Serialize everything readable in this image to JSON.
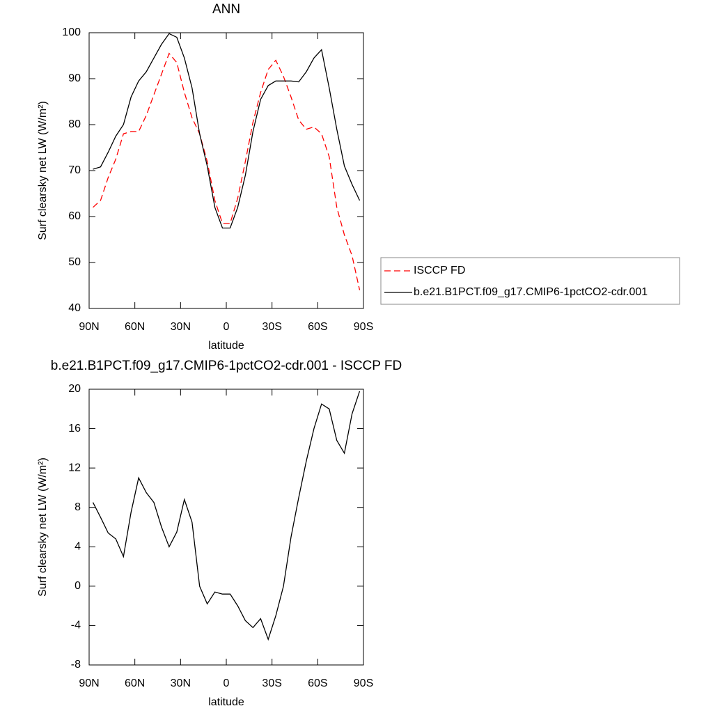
{
  "chart_data": [
    {
      "type": "line",
      "title": "ANN",
      "xlabel": "latitude",
      "ylabel": "Surf clearsky net LW (W/m²)",
      "xlim": [
        90,
        -90
      ],
      "ylim": [
        40,
        100
      ],
      "xticks": [
        {
          "value": 90,
          "label": "90N"
        },
        {
          "value": 60,
          "label": "60N"
        },
        {
          "value": 30,
          "label": "30N"
        },
        0,
        {
          "value": -30,
          "label": "30S"
        },
        {
          "value": -60,
          "label": "60S"
        },
        {
          "value": -90,
          "label": "90S"
        }
      ],
      "yticks": [
        40,
        50,
        60,
        70,
        80,
        90,
        100
      ],
      "legend": "right",
      "x": [
        87.5,
        82.5,
        77.5,
        72.5,
        67.5,
        62.5,
        57.5,
        52.5,
        47.5,
        42.5,
        37.5,
        32.5,
        27.5,
        22.5,
        17.5,
        12.5,
        7.5,
        2.5,
        -2.5,
        -7.5,
        -12.5,
        -17.5,
        -22.5,
        -27.5,
        -32.5,
        -37.5,
        -42.5,
        -47.5,
        -52.5,
        -57.5,
        -62.5,
        -67.5,
        -72.5,
        -77.5,
        -82.5,
        -87.5
      ],
      "series": [
        {
          "name": "ISCCP FD",
          "color": "#ff0000",
          "dashed": true,
          "values": [
            62,
            63.5,
            68.5,
            72.5,
            78,
            78.5,
            78.5,
            82,
            86.5,
            91,
            95.5,
            93.5,
            87,
            81.5,
            78,
            72,
            63.5,
            58.5,
            58.5,
            64,
            72,
            80.5,
            87,
            92,
            94,
            90.5,
            86,
            81,
            79,
            79.5,
            78,
            73,
            62,
            56,
            51.5,
            44
          ]
        },
        {
          "name": "b.e21.B1PCT.f09_g17.CMIP6-1pctCO2-cdr.001",
          "color": "#000000",
          "dashed": false,
          "values": [
            70.3,
            70.8,
            74,
            77.5,
            80,
            86,
            89.5,
            91.5,
            94.5,
            97.5,
            99.8,
            99,
            94.5,
            88,
            78,
            71,
            62,
            57.5,
            57.5,
            62,
            69,
            78.5,
            85.5,
            88.5,
            89.5,
            89.5,
            89.5,
            89.3,
            91.5,
            94.5,
            96.3,
            88,
            79,
            71,
            67,
            63.5
          ]
        }
      ]
    },
    {
      "type": "line",
      "title": "b.e21.B1PCT.f09_g17.CMIP6-1pctCO2-cdr.001 - ISCCP FD",
      "xlabel": "latitude",
      "ylabel": "Surf clearsky net LW (W/m²)",
      "xlim": [
        90,
        -90
      ],
      "ylim": [
        -8,
        20
      ],
      "xticks": [
        {
          "value": 90,
          "label": "90N"
        },
        {
          "value": 60,
          "label": "60N"
        },
        {
          "value": 30,
          "label": "30N"
        },
        0,
        {
          "value": -30,
          "label": "30S"
        },
        {
          "value": -60,
          "label": "60S"
        },
        {
          "value": -90,
          "label": "90S"
        }
      ],
      "yticks": [
        -8,
        -4,
        0,
        4,
        8,
        12,
        16,
        20
      ],
      "x": [
        87.5,
        82.5,
        77.5,
        72.5,
        67.5,
        62.5,
        57.5,
        52.5,
        47.5,
        42.5,
        37.5,
        32.5,
        27.5,
        22.5,
        17.5,
        12.5,
        7.5,
        2.5,
        -2.5,
        -7.5,
        -12.5,
        -17.5,
        -22.5,
        -27.5,
        -32.5,
        -37.5,
        -42.5,
        -47.5,
        -52.5,
        -57.5,
        -62.5,
        -67.5,
        -72.5,
        -77.5,
        -82.5,
        -87.5
      ],
      "series": [
        {
          "color": "#000000",
          "dashed": false,
          "values": [
            8.5,
            7,
            5.4,
            4.8,
            3,
            7.5,
            11,
            9.5,
            8.5,
            6,
            4,
            5.5,
            8.8,
            6.5,
            0,
            -1.8,
            -0.6,
            -0.8,
            -0.8,
            -2,
            -3.5,
            -4.2,
            -3.3,
            -5.4,
            -3,
            0,
            5,
            9,
            12.7,
            16,
            18.5,
            18,
            14.8,
            13.5,
            17.5,
            19.8
          ]
        }
      ]
    }
  ]
}
